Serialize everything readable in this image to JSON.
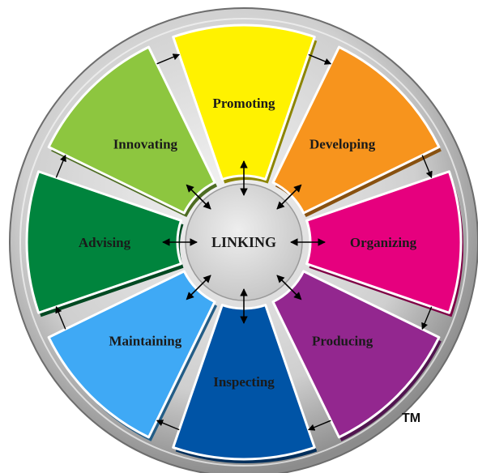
{
  "diagram": {
    "center_label": "LINKING",
    "trademark": "TM",
    "segments": [
      {
        "label": "Promoting",
        "color": "#FFF200"
      },
      {
        "label": "Developing",
        "color": "#F7941D"
      },
      {
        "label": "Organizing",
        "color": "#E6007E"
      },
      {
        "label": "Producing",
        "color": "#93278F"
      },
      {
        "label": "Inspecting",
        "color": "#0054A6"
      },
      {
        "label": "Maintaining",
        "color": "#3FA9F5"
      },
      {
        "label": "Advising",
        "color": "#00843D"
      },
      {
        "label": "Innovating",
        "color": "#8DC63F"
      }
    ],
    "colors": {
      "rim": "#8C8C8C",
      "rim_light": "#E0E0E0",
      "hub": "#D2D2D2",
      "arrow": "#000000"
    },
    "icons": [
      "bidirectional-arrow-icon",
      "arrow-icon"
    ]
  }
}
